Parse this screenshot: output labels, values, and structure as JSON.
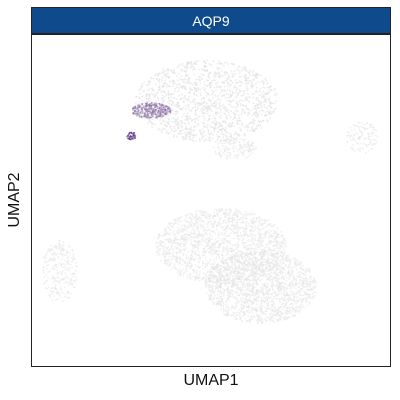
{
  "chart_data": {
    "type": "scatter",
    "title": "AQP9",
    "xlabel": "UMAP1",
    "ylabel": "UMAP2",
    "grid": false,
    "legend": "none",
    "colors": {
      "strip": "#0e4a8c",
      "low": "#e4e4e4",
      "high": "#5a2d82"
    },
    "clusters": [
      {
        "id": "top-large",
        "cx": -1.2,
        "cy": 5.8,
        "rx": 3.6,
        "ry": 2.6,
        "expression": 0.05,
        "n": 1400
      },
      {
        "id": "top-left-edge",
        "cx": -4.0,
        "cy": 5.2,
        "rx": 1.0,
        "ry": 0.5,
        "expression": 0.45,
        "n": 300
      },
      {
        "id": "top-left-hot",
        "cx": -5.0,
        "cy": 3.6,
        "rx": 0.25,
        "ry": 0.25,
        "expression": 0.95,
        "n": 40
      },
      {
        "id": "middle-small",
        "cx": 0.2,
        "cy": 2.8,
        "rx": 1.1,
        "ry": 0.7,
        "expression": 0.0,
        "n": 160
      },
      {
        "id": "right-small",
        "cx": 6.6,
        "cy": 3.5,
        "rx": 0.8,
        "ry": 1.0,
        "expression": 0.0,
        "n": 120
      },
      {
        "id": "left-bottom",
        "cx": -8.6,
        "cy": -5.0,
        "rx": 0.9,
        "ry": 2.0,
        "expression": 0.0,
        "n": 260
      },
      {
        "id": "bottom-large-a",
        "cx": -0.5,
        "cy": -3.4,
        "rx": 3.3,
        "ry": 2.4,
        "expression": 0.0,
        "n": 1700
      },
      {
        "id": "bottom-large-b",
        "cx": 1.5,
        "cy": -6.0,
        "rx": 2.8,
        "ry": 2.3,
        "expression": 0.0,
        "n": 1700
      }
    ],
    "xlim": [
      -10,
      8
    ],
    "ylim": [
      -11,
      10
    ]
  }
}
